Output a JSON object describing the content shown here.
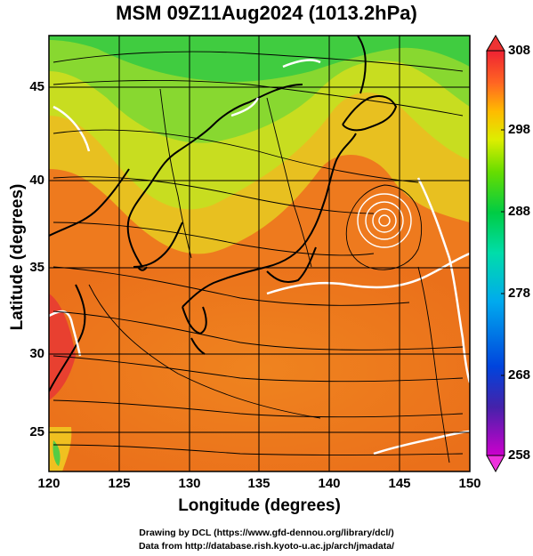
{
  "title": "MSM 09Z11Aug2024 (1013.2hPa)",
  "x_axis": {
    "label": "Longitude (degrees)",
    "ticks": [
      "120",
      "125",
      "130",
      "135",
      "140",
      "145",
      "150"
    ],
    "range": [
      120,
      150
    ]
  },
  "y_axis": {
    "label": "Latitude  (degrees)",
    "ticks": [
      "25",
      "30",
      "35",
      "40",
      "45"
    ],
    "range": [
      22.4,
      47.6
    ]
  },
  "colorbar": {
    "ticks": [
      "308",
      "298",
      "288",
      "278",
      "268",
      "258"
    ],
    "range": [
      258,
      308
    ],
    "colors": [
      "#cc00cc",
      "#4422aa",
      "#0044dd",
      "#00aaee",
      "#00ddaa",
      "#00cc44",
      "#55dd00",
      "#ccee00",
      "#ffee00",
      "#ffaa00",
      "#ff6622",
      "#ee2233"
    ]
  },
  "credits": {
    "line1": "Drawing by DCL (https://www.gfd-dennou.org/library/dcl/)",
    "line2": "Data from http://database.rish.kyoto-u.ac.jp/arch/jmadata/"
  },
  "features": {
    "cyclone_center": [
      143.5,
      37.5
    ]
  }
}
